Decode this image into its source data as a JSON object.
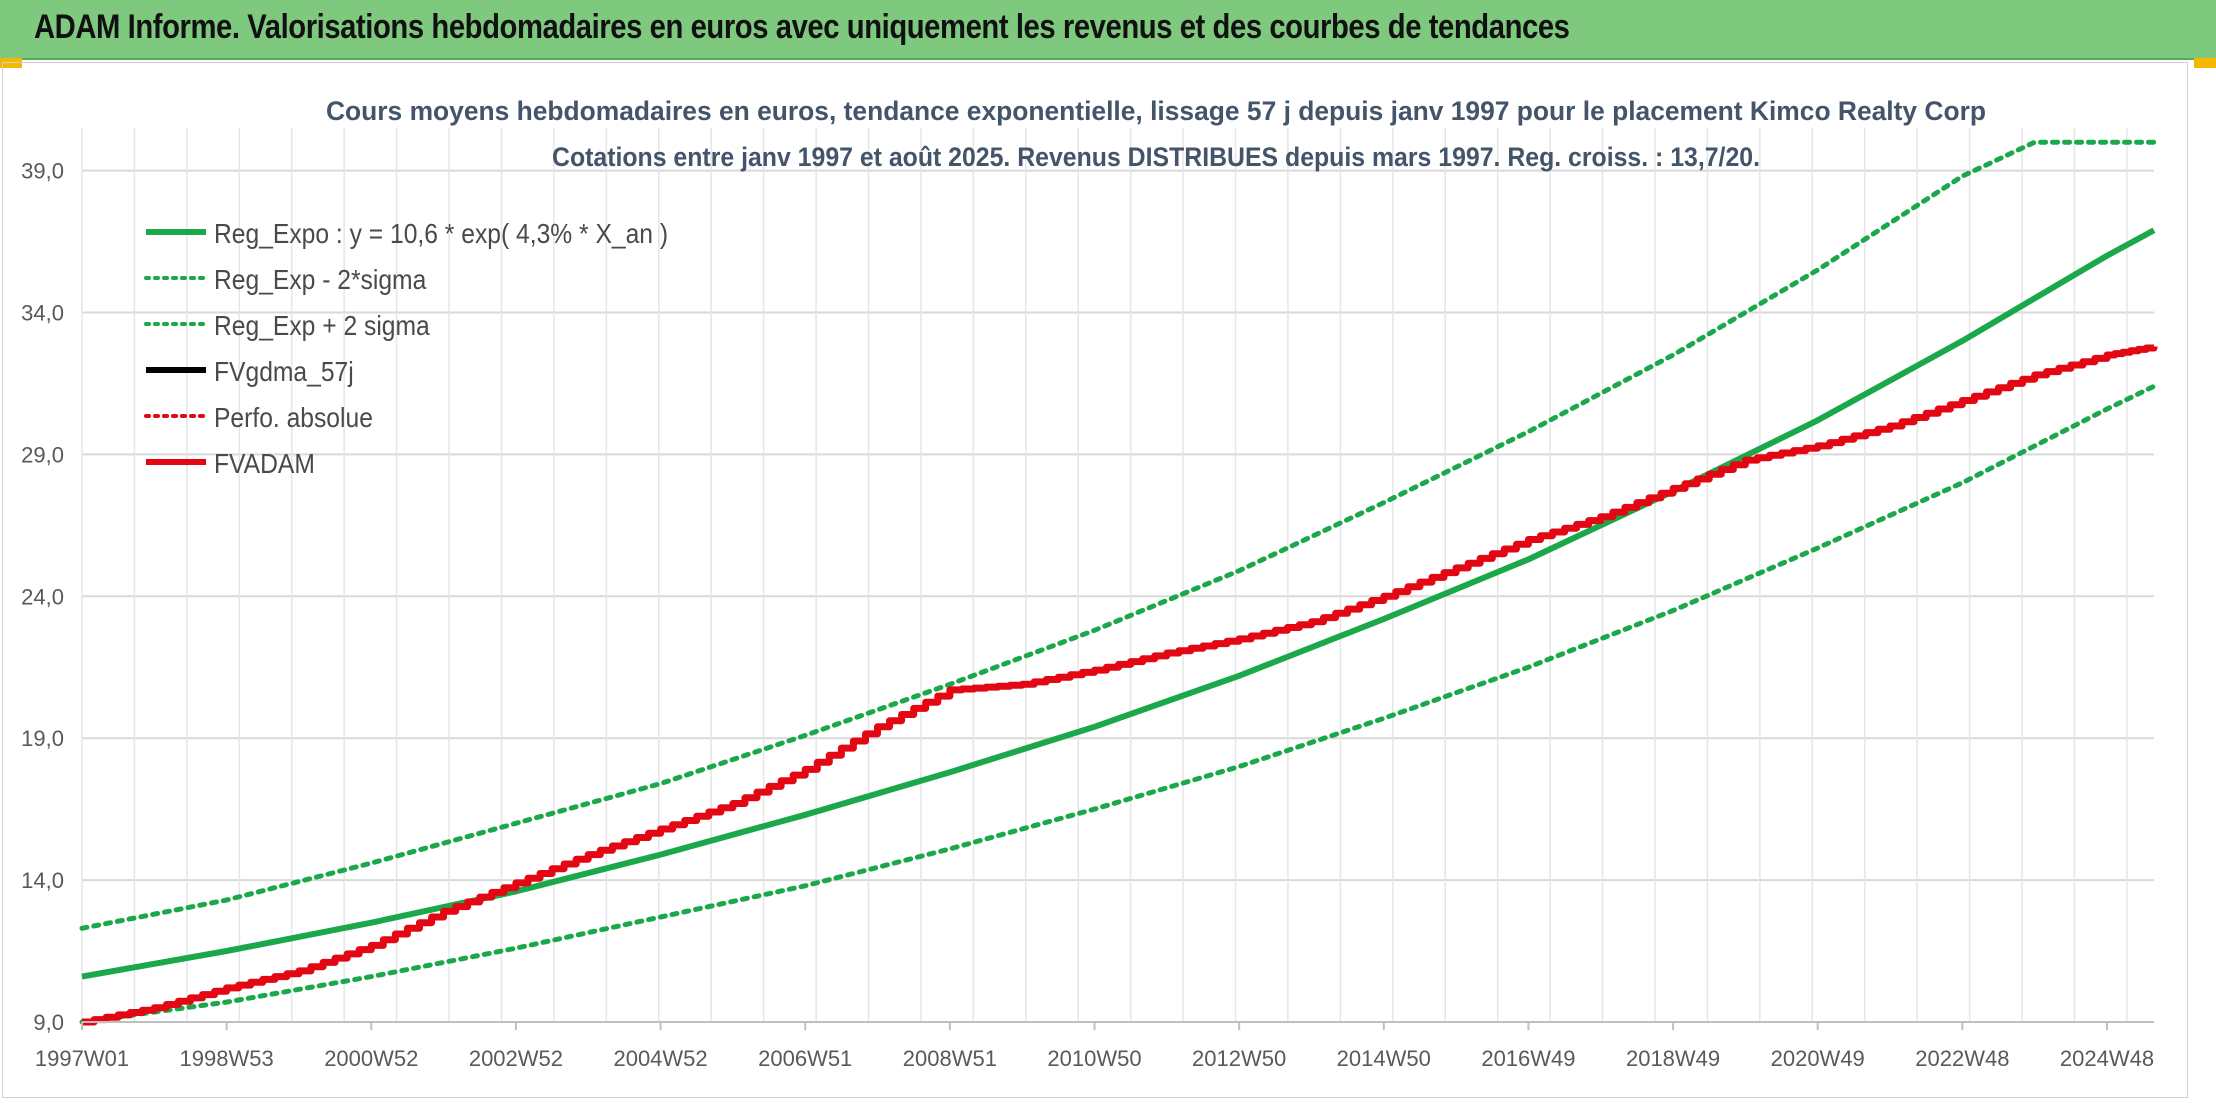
{
  "header": {
    "title": "ADAM Informe. Valorisations hebdomadaires en euros avec uniquement les revenus et des courbes de tendances"
  },
  "colors": {
    "header_bg": "#7fc97f",
    "green": "#1aa84a",
    "red": "#e30613",
    "black": "#000000",
    "grid": "#d9d9d9",
    "text": "#595959",
    "title_text": "#44546a"
  },
  "chart_data": {
    "type": "line",
    "title": "Cours moyens hebdomadaires en euros, tendance exponentielle, lissage 57 j depuis janv 1997 pour le placement Kimco Realty Corp",
    "subtitle": "Cotations entre janv 1997 et août 2025. Revenus DISTRIBUES depuis mars 1997. Reg. croiss. : 13,7/20.",
    "ylim": [
      9,
      40.5
    ],
    "yticks": [
      "9,0",
      "14,0",
      "19,0",
      "24,0",
      "29,0",
      "34,0",
      "39,0"
    ],
    "xlim": [
      1997.0,
      2025.65
    ],
    "xticks": [
      "1997W01",
      "1998W53",
      "2000W52",
      "2002W52",
      "2004W52",
      "2006W51",
      "2008W51",
      "2010W50",
      "2012W50",
      "2014W50",
      "2016W49",
      "2018W49",
      "2020W49",
      "2022W48",
      "2024W48"
    ],
    "xtick_positions": [
      1997.0,
      1999.0,
      2001.0,
      2003.0,
      2005.0,
      2007.0,
      2009.0,
      2011.0,
      2013.0,
      2015.0,
      2017.0,
      2019.0,
      2021.0,
      2023.0,
      2025.0
    ],
    "grid": true,
    "legend_position": "top-left",
    "legend": [
      {
        "label": "Reg_Expo : y = 10,6 * exp( 4,3% *  X_an )",
        "color": "#1aa84a",
        "style": "solid"
      },
      {
        "label": "Reg_Exp - 2*sigma",
        "color": "#1aa84a",
        "style": "dotted"
      },
      {
        "label": "Reg_Exp + 2 sigma",
        "color": "#1aa84a",
        "style": "dotted"
      },
      {
        "label": "FVgdma_57j",
        "color": "#000000",
        "style": "solid"
      },
      {
        "label": "Perfo. absolue",
        "color": "#e30613",
        "style": "dotted"
      },
      {
        "label": "FVADAM",
        "color": "#e30613",
        "style": "solid"
      }
    ],
    "series": [
      {
        "name": "Reg_Expo : y = 10,6 * exp( 4,3% *  X_an )",
        "color": "#1aa84a",
        "style": "solid",
        "x": [
          1997,
          1999,
          2001,
          2003,
          2005,
          2007,
          2009,
          2011,
          2013,
          2015,
          2017,
          2019,
          2021,
          2023,
          2025,
          2025.65
        ],
        "y": [
          10.6,
          11.5,
          12.5,
          13.6,
          14.9,
          16.3,
          17.8,
          19.4,
          21.2,
          23.2,
          25.3,
          27.7,
          30.2,
          33.0,
          36.0,
          36.9
        ]
      },
      {
        "name": "Reg_Exp - 2*sigma",
        "color": "#1aa84a",
        "style": "dotted",
        "x": [
          1997,
          1999,
          2001,
          2003,
          2005,
          2007,
          2009,
          2011,
          2013,
          2015,
          2017,
          2019,
          2021,
          2023,
          2025,
          2025.65
        ],
        "y": [
          9.0,
          9.7,
          10.6,
          11.6,
          12.7,
          13.8,
          15.1,
          16.5,
          18.0,
          19.7,
          21.5,
          23.5,
          25.7,
          28.0,
          30.6,
          31.4
        ]
      },
      {
        "name": "Reg_Exp + 2 sigma",
        "color": "#1aa84a",
        "style": "dotted",
        "x": [
          1997,
          1999,
          2001,
          2003,
          2005,
          2007,
          2009,
          2011,
          2013,
          2015,
          2017,
          2019,
          2021,
          2023,
          2024,
          2025,
          2025.65
        ],
        "y": [
          12.3,
          13.3,
          14.6,
          16.0,
          17.4,
          19.1,
          20.9,
          22.8,
          24.9,
          27.3,
          29.8,
          32.5,
          35.5,
          38.8,
          40.0,
          40.0,
          40.0
        ]
      },
      {
        "name": "FVADAM",
        "color": "#e30613",
        "style": "solid",
        "x": [
          1997,
          1998,
          1999,
          2000,
          2001,
          2002,
          2003,
          2004,
          2005,
          2006,
          2007,
          2008,
          2009,
          2010,
          2011,
          2012,
          2013,
          2014,
          2015,
          2016,
          2017,
          2018,
          2019,
          2020,
          2021,
          2022,
          2023,
          2024,
          2025,
          2025.65
        ],
        "y": [
          9.0,
          9.5,
          10.2,
          10.8,
          11.7,
          12.9,
          13.9,
          14.9,
          15.8,
          16.7,
          17.9,
          19.4,
          20.7,
          20.9,
          21.4,
          22.0,
          22.5,
          23.1,
          24.0,
          25.0,
          26.0,
          26.8,
          27.8,
          28.8,
          29.3,
          30.0,
          30.9,
          31.8,
          32.5,
          32.8
        ]
      }
    ]
  }
}
